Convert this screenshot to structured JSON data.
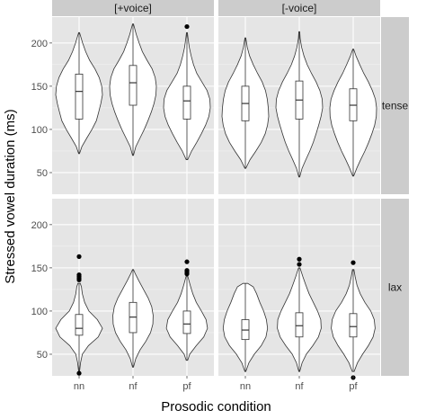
{
  "chart_data": {
    "type": "violin",
    "xlabel": "Prosodic condition",
    "ylabel": "Stressed vowel duration (ms)",
    "categories": [
      "nn",
      "nf",
      "pf"
    ],
    "facet_columns": [
      "[+voice]",
      "[-voice]"
    ],
    "facet_rows": [
      "tense",
      "lax"
    ],
    "ylim": [
      25,
      230
    ],
    "y_ticks": [
      50,
      100,
      150,
      200
    ],
    "grid": true,
    "colors": {
      "panel_bg": "#e5e5e5",
      "strip_bg": "#cccccc",
      "grid_major": "#ffffff",
      "grid_minor": "#f2f2f2",
      "violin_fill": "#ffffff",
      "outline": "#333333",
      "outlier": "#000000"
    },
    "panels": [
      {
        "column": "[+voice]",
        "row": "tense",
        "groups": [
          {
            "category": "nn",
            "ymin": 72,
            "q1": 112,
            "median": 144,
            "q3": 164,
            "ymax": 212,
            "outliers": [],
            "density": [
              [
                72,
                0.02
              ],
              [
                80,
                0.12
              ],
              [
                90,
                0.33
              ],
              [
                100,
                0.55
              ],
              [
                110,
                0.74
              ],
              [
                120,
                0.84
              ],
              [
                130,
                0.93
              ],
              [
                140,
                1.0
              ],
              [
                150,
                0.97
              ],
              [
                160,
                0.86
              ],
              [
                170,
                0.68
              ],
              [
                180,
                0.45
              ],
              [
                190,
                0.28
              ],
              [
                200,
                0.15
              ],
              [
                212,
                0.02
              ]
            ]
          },
          {
            "category": "nf",
            "ymin": 70,
            "q1": 128,
            "median": 154,
            "q3": 174,
            "ymax": 222,
            "outliers": [],
            "density": [
              [
                70,
                0.02
              ],
              [
                80,
                0.12
              ],
              [
                90,
                0.3
              ],
              [
                100,
                0.48
              ],
              [
                110,
                0.64
              ],
              [
                120,
                0.78
              ],
              [
                130,
                0.9
              ],
              [
                140,
                0.98
              ],
              [
                150,
                1.0
              ],
              [
                160,
                0.95
              ],
              [
                170,
                0.82
              ],
              [
                180,
                0.6
              ],
              [
                190,
                0.4
              ],
              [
                200,
                0.26
              ],
              [
                210,
                0.14
              ],
              [
                222,
                0.02
              ]
            ]
          },
          {
            "category": "pf",
            "ymin": 65,
            "q1": 112,
            "median": 133,
            "q3": 150,
            "ymax": 212,
            "outliers": [
              219
            ],
            "density": [
              [
                65,
                0.03
              ],
              [
                75,
                0.2
              ],
              [
                85,
                0.42
              ],
              [
                95,
                0.62
              ],
              [
                105,
                0.8
              ],
              [
                115,
                0.94
              ],
              [
                125,
                1.0
              ],
              [
                135,
                0.98
              ],
              [
                145,
                0.86
              ],
              [
                155,
                0.64
              ],
              [
                165,
                0.42
              ],
              [
                175,
                0.28
              ],
              [
                185,
                0.18
              ],
              [
                195,
                0.1
              ],
              [
                205,
                0.05
              ],
              [
                212,
                0.02
              ]
            ]
          }
        ]
      },
      {
        "column": "[-voice]",
        "row": "tense",
        "groups": [
          {
            "category": "nn",
            "ymin": 55,
            "q1": 110,
            "median": 130,
            "q3": 150,
            "ymax": 206,
            "outliers": [],
            "density": [
              [
                55,
                0.02
              ],
              [
                65,
                0.2
              ],
              [
                75,
                0.45
              ],
              [
                85,
                0.68
              ],
              [
                95,
                0.85
              ],
              [
                105,
                0.95
              ],
              [
                115,
                1.0
              ],
              [
                125,
                0.98
              ],
              [
                135,
                0.94
              ],
              [
                145,
                0.86
              ],
              [
                155,
                0.72
              ],
              [
                165,
                0.52
              ],
              [
                175,
                0.34
              ],
              [
                185,
                0.18
              ],
              [
                195,
                0.08
              ],
              [
                206,
                0.02
              ]
            ]
          },
          {
            "category": "nf",
            "ymin": 45,
            "q1": 112,
            "median": 134,
            "q3": 156,
            "ymax": 213,
            "outliers": [],
            "density": [
              [
                45,
                0.02
              ],
              [
                55,
                0.12
              ],
              [
                65,
                0.28
              ],
              [
                75,
                0.45
              ],
              [
                85,
                0.6
              ],
              [
                95,
                0.72
              ],
              [
                105,
                0.83
              ],
              [
                115,
                0.93
              ],
              [
                125,
                1.0
              ],
              [
                135,
                0.98
              ],
              [
                145,
                0.88
              ],
              [
                155,
                0.72
              ],
              [
                165,
                0.52
              ],
              [
                175,
                0.34
              ],
              [
                185,
                0.2
              ],
              [
                195,
                0.1
              ],
              [
                205,
                0.04
              ],
              [
                213,
                0.02
              ]
            ]
          },
          {
            "category": "pf",
            "ymin": 46,
            "q1": 110,
            "median": 128,
            "q3": 147,
            "ymax": 193,
            "outliers": [],
            "density": [
              [
                46,
                0.02
              ],
              [
                55,
                0.15
              ],
              [
                65,
                0.32
              ],
              [
                75,
                0.5
              ],
              [
                85,
                0.66
              ],
              [
                95,
                0.8
              ],
              [
                105,
                0.92
              ],
              [
                115,
                0.99
              ],
              [
                125,
                1.0
              ],
              [
                135,
                0.95
              ],
              [
                145,
                0.82
              ],
              [
                155,
                0.65
              ],
              [
                165,
                0.45
              ],
              [
                175,
                0.28
              ],
              [
                185,
                0.12
              ],
              [
                193,
                0.02
              ]
            ]
          }
        ]
      },
      {
        "column": "[+voice]",
        "row": "lax",
        "groups": [
          {
            "category": "nn",
            "ymin": 30,
            "q1": 72,
            "median": 80,
            "q3": 96,
            "ymax": 132,
            "outliers": [
              163,
              142,
              140,
              138,
              136,
              28
            ],
            "density": [
              [
                30,
                0.02
              ],
              [
                40,
                0.06
              ],
              [
                50,
                0.14
              ],
              [
                60,
                0.4
              ],
              [
                70,
                0.82
              ],
              [
                80,
                1.0
              ],
              [
                90,
                0.78
              ],
              [
                100,
                0.42
              ],
              [
                110,
                0.24
              ],
              [
                120,
                0.14
              ],
              [
                128,
                0.1
              ],
              [
                132,
                0.05
              ]
            ]
          },
          {
            "category": "nf",
            "ymin": 35,
            "q1": 75,
            "median": 93,
            "q3": 110,
            "ymax": 148,
            "outliers": [],
            "density": [
              [
                35,
                0.02
              ],
              [
                45,
                0.12
              ],
              [
                55,
                0.3
              ],
              [
                65,
                0.55
              ],
              [
                75,
                0.75
              ],
              [
                85,
                0.85
              ],
              [
                95,
                0.86
              ],
              [
                105,
                0.8
              ],
              [
                115,
                0.65
              ],
              [
                125,
                0.45
              ],
              [
                135,
                0.25
              ],
              [
                143,
                0.1
              ],
              [
                148,
                0.02
              ]
            ]
          },
          {
            "category": "pf",
            "ymin": 43,
            "q1": 74,
            "median": 85,
            "q3": 100,
            "ymax": 140,
            "outliers": [
              157,
              147,
              145,
              143
            ],
            "density": [
              [
                43,
                0.03
              ],
              [
                50,
                0.12
              ],
              [
                60,
                0.4
              ],
              [
                70,
                0.72
              ],
              [
                80,
                0.88
              ],
              [
                90,
                0.82
              ],
              [
                100,
                0.62
              ],
              [
                110,
                0.4
              ],
              [
                120,
                0.25
              ],
              [
                130,
                0.14
              ],
              [
                140,
                0.04
              ]
            ]
          }
        ]
      },
      {
        "column": "[-voice]",
        "row": "lax",
        "groups": [
          {
            "category": "nn",
            "ymin": 30,
            "q1": 67,
            "median": 78,
            "q3": 90,
            "ymax": 132,
            "outliers": [],
            "density": [
              [
                30,
                0.02
              ],
              [
                40,
                0.15
              ],
              [
                50,
                0.38
              ],
              [
                60,
                0.68
              ],
              [
                70,
                0.88
              ],
              [
                80,
                0.95
              ],
              [
                90,
                0.9
              ],
              [
                100,
                0.78
              ],
              [
                110,
                0.62
              ],
              [
                120,
                0.48
              ],
              [
                128,
                0.34
              ],
              [
                132,
                0.1
              ]
            ]
          },
          {
            "category": "nf",
            "ymin": 30,
            "q1": 70,
            "median": 83,
            "q3": 98,
            "ymax": 150,
            "outliers": [
              160,
              154
            ],
            "density": [
              [
                30,
                0.02
              ],
              [
                40,
                0.12
              ],
              [
                50,
                0.3
              ],
              [
                60,
                0.58
              ],
              [
                70,
                0.82
              ],
              [
                80,
                0.94
              ],
              [
                90,
                0.92
              ],
              [
                100,
                0.78
              ],
              [
                110,
                0.6
              ],
              [
                120,
                0.42
              ],
              [
                130,
                0.28
              ],
              [
                140,
                0.15
              ],
              [
                150,
                0.03
              ]
            ]
          },
          {
            "category": "pf",
            "ymin": 30,
            "q1": 70,
            "median": 82,
            "q3": 97,
            "ymax": 148,
            "outliers": [
              156,
              23
            ],
            "density": [
              [
                30,
                0.04
              ],
              [
                40,
                0.18
              ],
              [
                50,
                0.4
              ],
              [
                60,
                0.65
              ],
              [
                70,
                0.85
              ],
              [
                80,
                0.94
              ],
              [
                90,
                0.9
              ],
              [
                100,
                0.75
              ],
              [
                110,
                0.5
              ],
              [
                120,
                0.3
              ],
              [
                130,
                0.16
              ],
              [
                140,
                0.08
              ],
              [
                148,
                0.03
              ]
            ]
          }
        ]
      }
    ]
  }
}
